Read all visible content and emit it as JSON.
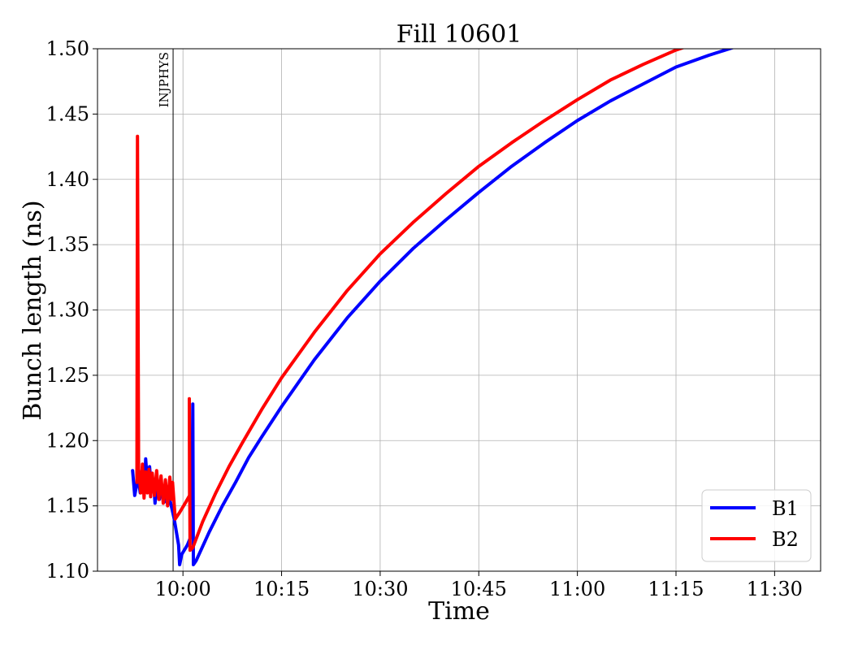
{
  "chart_data": {
    "type": "line",
    "title": "Fill 10601",
    "xlabel": "Time",
    "ylabel": "Bunch length (ns)",
    "xlim": [
      "09:47",
      "11:37"
    ],
    "ylim": [
      1.1,
      1.5
    ],
    "x_ticks": [
      "10:00",
      "10:15",
      "10:30",
      "10:45",
      "11:00",
      "11:15",
      "11:30"
    ],
    "y_ticks": [
      "1.10",
      "1.15",
      "1.20",
      "1.25",
      "1.30",
      "1.35",
      "1.40",
      "1.45",
      "1.50"
    ],
    "grid": true,
    "legend_position": "lower-right",
    "annotations": [
      {
        "text": "INJPHYS",
        "x": "09:58:30"
      }
    ],
    "series": [
      {
        "name": "B1",
        "color": "#0000ff",
        "points": [
          [
            "09:52:20",
            1.177
          ],
          [
            "09:52:40",
            1.158
          ],
          [
            "09:53:10",
            1.172
          ],
          [
            "09:53:30",
            1.16
          ],
          [
            "09:53:50",
            1.18
          ],
          [
            "09:54:10",
            1.165
          ],
          [
            "09:54:20",
            1.186
          ],
          [
            "09:54:40",
            1.163
          ],
          [
            "09:54:55",
            1.18
          ],
          [
            "09:55:10",
            1.165
          ],
          [
            "09:55:30",
            1.17
          ],
          [
            "09:55:45",
            1.152
          ],
          [
            "09:56:05",
            1.168
          ],
          [
            "09:56:25",
            1.155
          ],
          [
            "09:56:45",
            1.165
          ],
          [
            "09:57:10",
            1.153
          ],
          [
            "09:57:30",
            1.16
          ],
          [
            "09:58:00",
            1.155
          ],
          [
            "09:58:40",
            1.14
          ],
          [
            "09:59:20",
            1.12
          ],
          [
            "09:59:30",
            1.105
          ],
          [
            "09:59:50",
            1.113
          ],
          [
            "10:00:40",
            1.12
          ],
          [
            "10:01:20",
            1.128
          ],
          [
            "10:01:30",
            1.228
          ],
          [
            "10:01:35",
            1.105
          ],
          [
            "10:02:00",
            1.108
          ],
          [
            "10:04:00",
            1.13
          ],
          [
            "10:06:00",
            1.15
          ],
          [
            "10:08:00",
            1.168
          ],
          [
            "10:10:00",
            1.187
          ],
          [
            "10:12:00",
            1.203
          ],
          [
            "10:15:00",
            1.226
          ],
          [
            "10:20:00",
            1.262
          ],
          [
            "10:25:00",
            1.294
          ],
          [
            "10:30:00",
            1.322
          ],
          [
            "10:35:00",
            1.347
          ],
          [
            "10:40:00",
            1.369
          ],
          [
            "10:45:00",
            1.39
          ],
          [
            "10:50:00",
            1.41
          ],
          [
            "10:55:00",
            1.428
          ],
          [
            "11:00:00",
            1.445
          ],
          [
            "11:05:00",
            1.46
          ],
          [
            "11:10:00",
            1.473
          ],
          [
            "11:15:00",
            1.486
          ],
          [
            "11:20:00",
            1.495
          ],
          [
            "11:25:00",
            1.503
          ]
        ]
      },
      {
        "name": "B2",
        "color": "#ff0000",
        "points": [
          [
            "09:53:00",
            1.168
          ],
          [
            "09:53:05",
            1.433
          ],
          [
            "09:53:15",
            1.178
          ],
          [
            "09:53:35",
            1.16
          ],
          [
            "09:53:50",
            1.182
          ],
          [
            "09:54:05",
            1.156
          ],
          [
            "09:54:20",
            1.176
          ],
          [
            "09:54:35",
            1.16
          ],
          [
            "09:54:50",
            1.178
          ],
          [
            "09:55:05",
            1.157
          ],
          [
            "09:55:20",
            1.175
          ],
          [
            "09:55:40",
            1.158
          ],
          [
            "09:56:00",
            1.177
          ],
          [
            "09:56:20",
            1.155
          ],
          [
            "09:56:40",
            1.173
          ],
          [
            "09:57:00",
            1.152
          ],
          [
            "09:57:20",
            1.17
          ],
          [
            "09:57:40",
            1.15
          ],
          [
            "09:58:00",
            1.172
          ],
          [
            "09:58:15",
            1.155
          ],
          [
            "09:58:25",
            1.168
          ],
          [
            "09:58:50",
            1.14
          ],
          [
            "09:59:30",
            1.145
          ],
          [
            "10:00:20",
            1.152
          ],
          [
            "10:01:00",
            1.158
          ],
          [
            "10:00:58",
            1.232
          ],
          [
            "10:01:05",
            1.116
          ],
          [
            "10:01:30",
            1.118
          ],
          [
            "10:03:00",
            1.138
          ],
          [
            "10:05:00",
            1.16
          ],
          [
            "10:07:00",
            1.18
          ],
          [
            "10:09:00",
            1.198
          ],
          [
            "10:12:00",
            1.224
          ],
          [
            "10:15:00",
            1.248
          ],
          [
            "10:20:00",
            1.283
          ],
          [
            "10:25:00",
            1.315
          ],
          [
            "10:30:00",
            1.343
          ],
          [
            "10:35:00",
            1.367
          ],
          [
            "10:40:00",
            1.389
          ],
          [
            "10:45:00",
            1.41
          ],
          [
            "10:50:00",
            1.428
          ],
          [
            "10:55:00",
            1.445
          ],
          [
            "11:00:00",
            1.461
          ],
          [
            "11:05:00",
            1.476
          ],
          [
            "11:10:00",
            1.488
          ],
          [
            "11:15:00",
            1.499
          ],
          [
            "11:18:00",
            1.504
          ]
        ]
      }
    ]
  }
}
